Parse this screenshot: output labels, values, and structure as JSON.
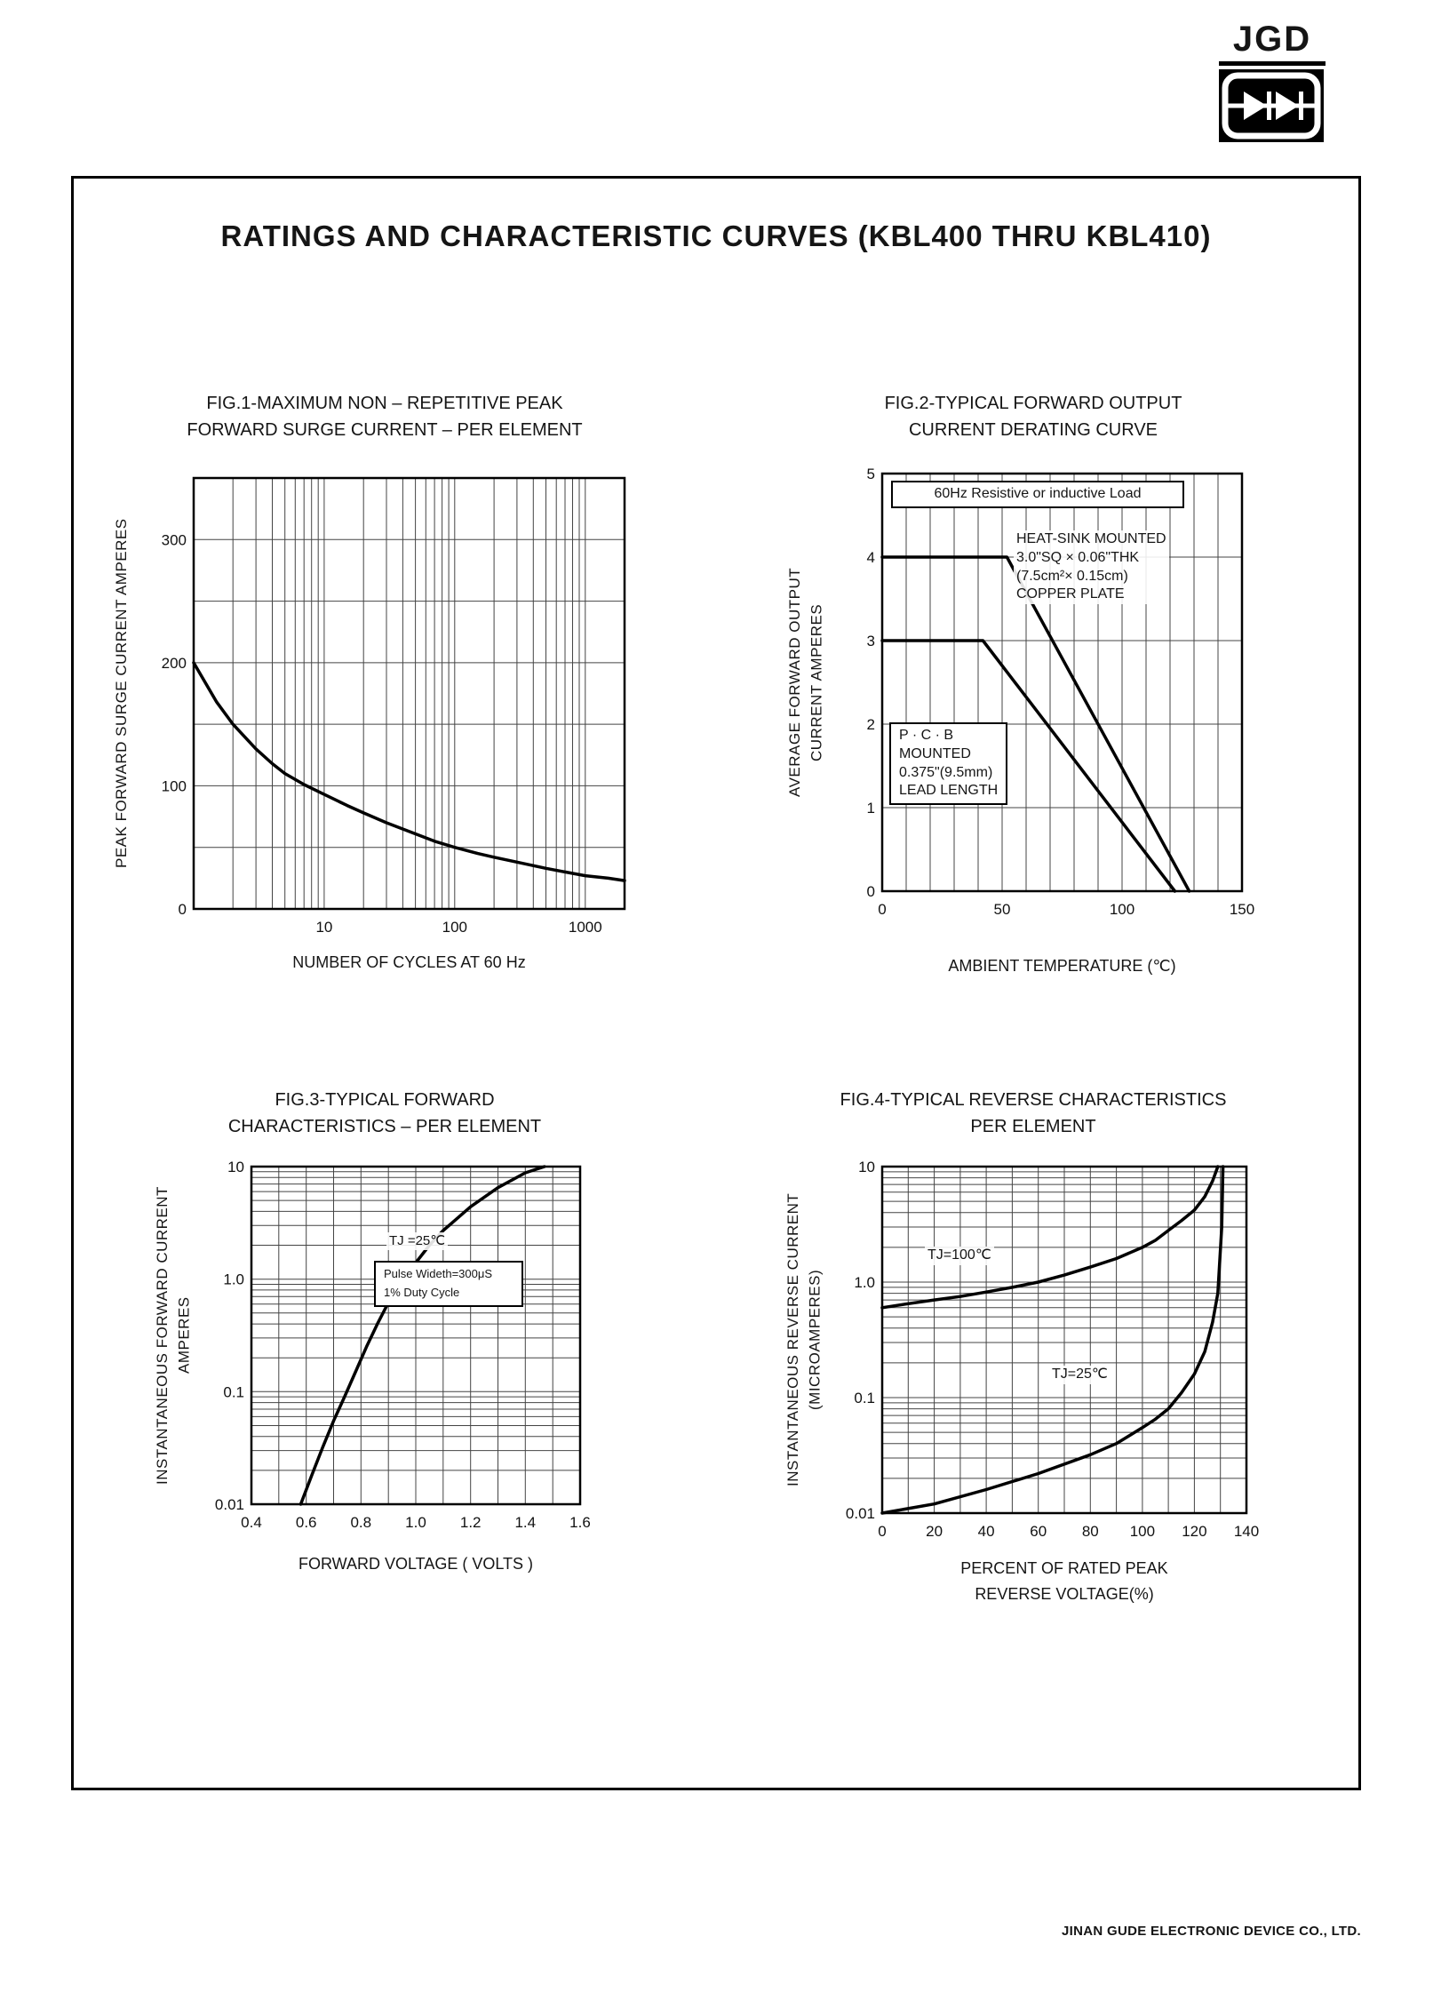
{
  "page": {
    "logo_text": "JGD",
    "title": "RATINGS AND CHARACTERISTIC CURVES (KBL400 THRU KBL410)",
    "footer": "JINAN GUDE ELECTRONIC DEVICE CO., LTD."
  },
  "chart_data": [
    {
      "id": "fig1",
      "type": "line",
      "title_line1": "FIG.1-MAXIMUM NON – REPETITIVE PEAK",
      "title_line2": "FORWARD SURGE CURRENT – PER ELEMENT",
      "xlabel": "NUMBER OF CYCLES AT 60 Hz",
      "ylabel": "PEAK FORWARD SURGE CURRENT AMPERES",
      "x_axis": {
        "type": "log",
        "min": 1,
        "max": 2000,
        "ticks": [
          "10",
          "100",
          "1000"
        ]
      },
      "y_axis": {
        "type": "linear",
        "min": 0,
        "max": 350,
        "step": 50,
        "ticks": [
          "0",
          "100",
          "200",
          "300"
        ]
      },
      "grid": "on",
      "series": [
        {
          "name": "peak forward surge current",
          "points": [
            [
              1,
              200
            ],
            [
              1.5,
              168
            ],
            [
              2,
              150
            ],
            [
              3,
              130
            ],
            [
              4,
              118
            ],
            [
              5,
              110
            ],
            [
              7,
              101
            ],
            [
              10,
              93
            ],
            [
              15,
              84
            ],
            [
              20,
              78
            ],
            [
              30,
              70
            ],
            [
              50,
              61
            ],
            [
              70,
              55
            ],
            [
              100,
              50
            ],
            [
              150,
              45
            ],
            [
              200,
              42
            ],
            [
              300,
              38
            ],
            [
              500,
              33
            ],
            [
              700,
              30
            ],
            [
              1000,
              27
            ],
            [
              1500,
              25
            ],
            [
              2000,
              23
            ]
          ]
        }
      ]
    },
    {
      "id": "fig2",
      "type": "line",
      "title_line1": "FIG.2-TYPICAL FORWARD OUTPUT",
      "title_line2": "CURRENT DERATING CURVE",
      "xlabel": "AMBIENT TEMPERATURE (℃)",
      "ylabel_line1": "AVERAGE FORWARD OUTPUT",
      "ylabel_line2": "CURRENT AMPERES",
      "x_axis": {
        "type": "linear",
        "min": 0,
        "max": 150,
        "step": 10,
        "ticks": [
          "0",
          "50",
          "100",
          "150"
        ]
      },
      "y_axis": {
        "type": "linear",
        "min": 0,
        "max": 5,
        "step": 1,
        "ticks": [
          "0",
          "1",
          "2",
          "3",
          "4",
          "5"
        ]
      },
      "grid": "on",
      "annotations": {
        "load": "60Hz Resistive or inductive Load",
        "heatsink": "HEAT-SINK MOUNTED\n3.0\"SQ × 0.06\"THK\n(7.5cm²× 0.15cm)\nCOPPER PLATE",
        "pcb": "P · C · B\nMOUNTED\n0.375\"(9.5mm)\nLEAD LENGTH"
      },
      "series": [
        {
          "name": "HEAT-SINK MOUNTED",
          "points": [
            [
              0,
              4
            ],
            [
              52,
              4
            ],
            [
              128,
              0
            ]
          ]
        },
        {
          "name": "P.C.B MOUNTED",
          "points": [
            [
              0,
              3
            ],
            [
              42,
              3
            ],
            [
              122,
              0
            ]
          ]
        }
      ]
    },
    {
      "id": "fig3",
      "type": "line",
      "title_line1": "FIG.3-TYPICAL FORWARD",
      "title_line2": "CHARACTERISTICS – PER ELEMENT",
      "xlabel": "FORWARD VOLTAGE ( VOLTS )",
      "ylabel_line1": "INSTANTANEOUS FORWARD CURRENT",
      "ylabel_line2": "AMPERES",
      "x_axis": {
        "type": "linear",
        "min": 0.4,
        "max": 1.6,
        "step": 0.1,
        "ticks": [
          "0.4",
          "0.6",
          "0.8",
          "1.0",
          "1.2",
          "1.4",
          "1.6"
        ]
      },
      "y_axis": {
        "type": "log",
        "min": 0.01,
        "max": 10,
        "ticks": [
          "0.01",
          "0.1",
          "1.0",
          "10"
        ]
      },
      "grid": "on",
      "annotations": {
        "tj": "TJ =25℃",
        "pulse": "Pulse Wideth=300μS\n1% Duty Cycle"
      },
      "series": [
        {
          "name": "instantaneous forward current",
          "points": [
            [
              0.58,
              0.01
            ],
            [
              0.62,
              0.018
            ],
            [
              0.66,
              0.032
            ],
            [
              0.7,
              0.055
            ],
            [
              0.74,
              0.09
            ],
            [
              0.78,
              0.15
            ],
            [
              0.82,
              0.25
            ],
            [
              0.86,
              0.4
            ],
            [
              0.9,
              0.62
            ],
            [
              0.95,
              0.95
            ],
            [
              1.0,
              1.4
            ],
            [
              1.05,
              2.0
            ],
            [
              1.1,
              2.7
            ],
            [
              1.2,
              4.4
            ],
            [
              1.3,
              6.5
            ],
            [
              1.4,
              8.8
            ],
            [
              1.47,
              10
            ]
          ]
        }
      ]
    },
    {
      "id": "fig4",
      "type": "line",
      "title_line1": "FIG.4-TYPICAL REVERSE CHARACTERISTICS",
      "title_line2": "PER ELEMENT",
      "xlabel": "PERCENT OF RATED PEAK\nREVERSE VOLTAGE(%)",
      "ylabel_line1": "INSTANTANEOUS REVERSE CURRENT",
      "ylabel_line2": "(MICROAMPERES)",
      "x_axis": {
        "type": "linear",
        "min": 0,
        "max": 140,
        "step": 10,
        "ticks": [
          "0",
          "20",
          "40",
          "60",
          "80",
          "100",
          "120",
          "140"
        ]
      },
      "y_axis": {
        "type": "log",
        "min": 0.01,
        "max": 10,
        "ticks": [
          "0.01",
          "0.1",
          "1.0",
          "10"
        ]
      },
      "grid": "on",
      "annotations": {
        "t100": "TJ=100℃",
        "t25": "TJ=25℃"
      },
      "series": [
        {
          "name": "TJ=100℃",
          "points": [
            [
              0,
              0.6
            ],
            [
              10,
              0.65
            ],
            [
              20,
              0.7
            ],
            [
              30,
              0.75
            ],
            [
              40,
              0.82
            ],
            [
              50,
              0.9
            ],
            [
              60,
              1.0
            ],
            [
              70,
              1.15
            ],
            [
              80,
              1.35
            ],
            [
              90,
              1.6
            ],
            [
              100,
              2.0
            ],
            [
              105,
              2.3
            ],
            [
              110,
              2.8
            ],
            [
              115,
              3.4
            ],
            [
              120,
              4.2
            ],
            [
              124,
              5.5
            ],
            [
              127,
              7.5
            ],
            [
              129,
              10
            ]
          ]
        },
        {
          "name": "TJ=25℃",
          "points": [
            [
              0,
              0.01
            ],
            [
              20,
              0.012
            ],
            [
              40,
              0.016
            ],
            [
              60,
              0.022
            ],
            [
              80,
              0.032
            ],
            [
              90,
              0.04
            ],
            [
              100,
              0.055
            ],
            [
              105,
              0.065
            ],
            [
              110,
              0.08
            ],
            [
              115,
              0.11
            ],
            [
              120,
              0.16
            ],
            [
              124,
              0.25
            ],
            [
              127,
              0.45
            ],
            [
              129,
              0.8
            ],
            [
              130.5,
              3
            ],
            [
              131,
              10
            ]
          ]
        }
      ]
    }
  ]
}
